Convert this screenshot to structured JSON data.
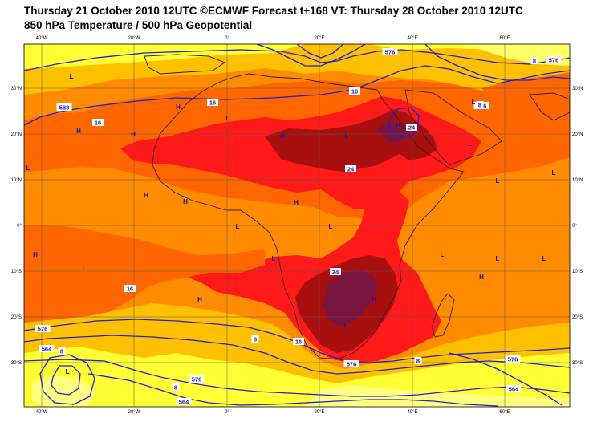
{
  "header": {
    "line1": "Thursday 21 October 2010 12UTC ©ECMWF Forecast t+168 VT: Thursday 28 October 2010 12UTC",
    "line2": "850 hPa Temperature / 500 hPa Geopotential"
  },
  "axes": {
    "lon_ticks": [
      "40°W",
      "20°W",
      "0°",
      "20°E",
      "40°E",
      "60°E"
    ],
    "lat_ticks": [
      "30°N",
      "20°N",
      "10°N",
      "0°",
      "10°S",
      "20°S",
      "30°S"
    ]
  },
  "colors": {
    "background": "#ff8c00",
    "band_orange": "#ff6600",
    "band_red": "#ff1a1a",
    "band_dark_red": "#a81010",
    "band_darkest": "#7a1540",
    "band_yellow_orange": "#ffc000",
    "band_yellow": "#ffff33",
    "contour": "#2222cc",
    "coast": "#3a1a1a",
    "grid": "#555555"
  },
  "pressure_centers": [
    {
      "label": "L"
    },
    {
      "label": "H"
    },
    {
      "label": "H"
    },
    {
      "label": "L"
    },
    {
      "label": "H"
    },
    {
      "label": "L"
    },
    {
      "label": "H"
    },
    {
      "label": "L"
    },
    {
      "label": "H"
    },
    {
      "label": "L"
    },
    {
      "label": "L"
    },
    {
      "label": "L"
    },
    {
      "label": "L"
    },
    {
      "label": "H"
    },
    {
      "label": "L"
    },
    {
      "label": "L"
    },
    {
      "label": "H"
    },
    {
      "label": "H"
    },
    {
      "label": "L"
    },
    {
      "label": "L"
    },
    {
      "label": "H"
    },
    {
      "label": "L"
    },
    {
      "label": "H"
    },
    {
      "label": "L"
    },
    {
      "label": "H"
    },
    {
      "label": "L"
    },
    {
      "label": "H"
    },
    {
      "label": "L"
    },
    {
      "label": "L"
    },
    {
      "label": "L"
    }
  ],
  "contour_labels": [
    "588",
    "16",
    "16",
    "16",
    "24",
    "24",
    "24",
    "16",
    "8",
    "16",
    "8",
    "576",
    "8",
    "576",
    "564",
    "576",
    "564",
    "576",
    "8",
    "576",
    "564",
    "8",
    "576",
    "576",
    "8"
  ]
}
